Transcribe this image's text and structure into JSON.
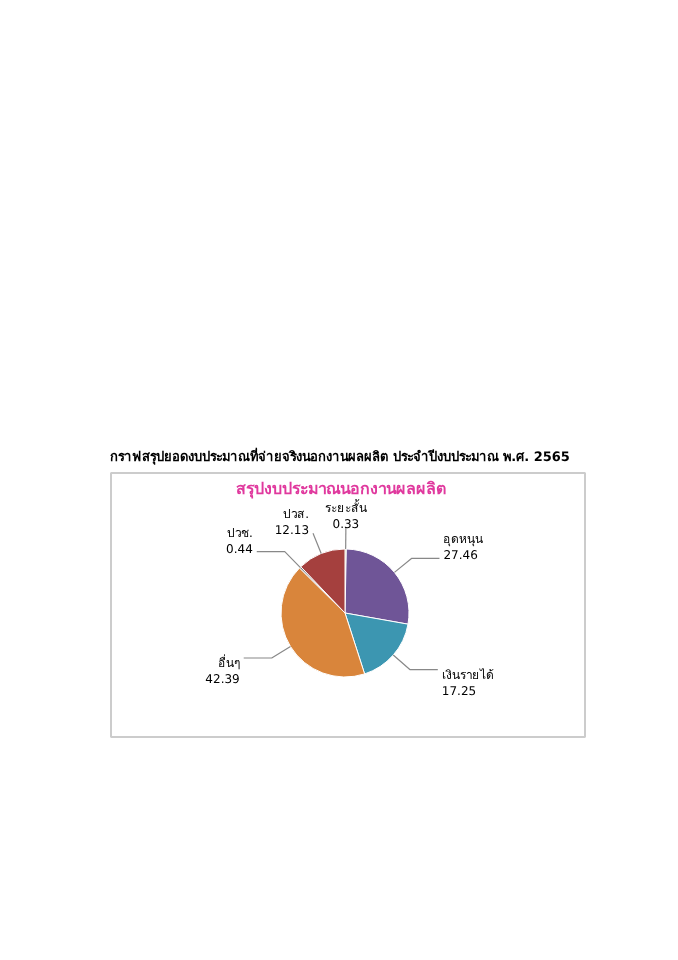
{
  "chart_data": {
    "type": "pie",
    "title": "กราฟสรุปยอดงบประมาณที่จ่ายจริงนอกงานผลผลิต ประจำปีงบประมาณ พ.ศ. 2565",
    "subtitle": "สรุปงบประมาณนอกงานผลผลิต",
    "categories": [
      "ระยะสั้น",
      "อุดหนุน",
      "เงินรายได้",
      "อื่นๆ",
      "ปวช.",
      "ปวส."
    ],
    "values": [
      0.33,
      27.46,
      17.25,
      42.39,
      0.44,
      12.13
    ],
    "colors": [
      "#9ba03a",
      "#6f5597",
      "#3c96b1",
      "#d9853b",
      "#7f7f7f",
      "#a5403e"
    ],
    "data_labels": true
  }
}
